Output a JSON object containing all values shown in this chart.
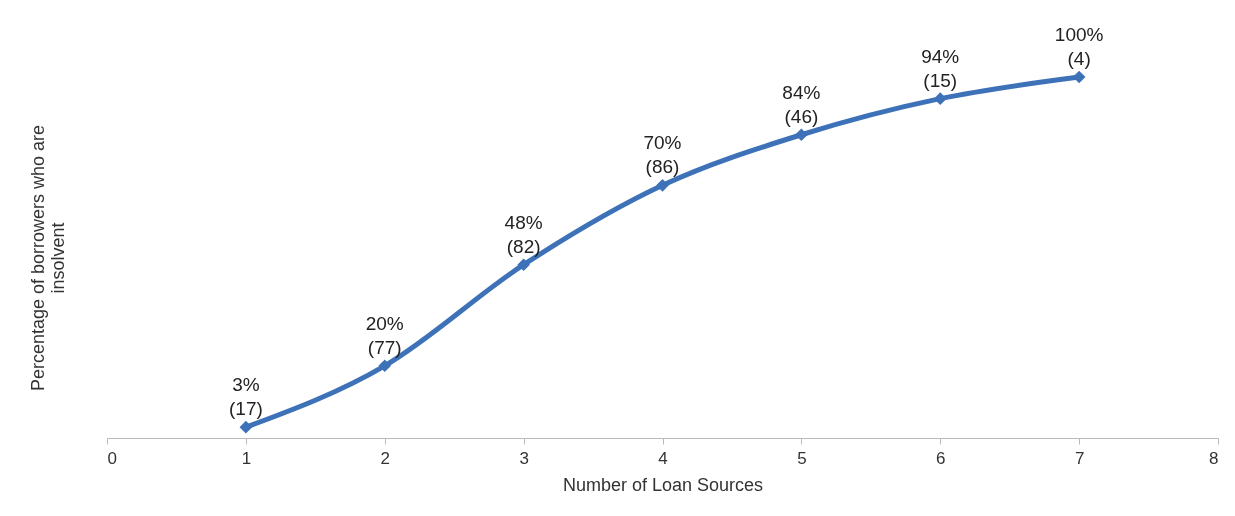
{
  "chart_data": {
    "type": "line",
    "xlabel": "Number of Loan Sources",
    "ylabel": "Percentage of borrowers who are insolvent",
    "x": [
      1,
      2,
      3,
      4,
      5,
      6,
      7
    ],
    "series": [
      {
        "color": "#3d72b8",
        "values": [
          3,
          20,
          48,
          70,
          84,
          94,
          100
        ],
        "value_labels": [
          "3%\n(17)",
          "20%\n(77)",
          "48%\n(82)",
          "70%\n(86)",
          "84%\n(46)",
          "94%\n(15)",
          "100%\n(4)"
        ]
      }
    ],
    "xlim": [
      0,
      8
    ],
    "xticks": [
      0,
      1,
      2,
      3,
      4,
      5,
      6,
      7,
      8
    ],
    "tick_labels": "x",
    "grid": false,
    "marker": "diamond",
    "line_style": "solid"
  }
}
